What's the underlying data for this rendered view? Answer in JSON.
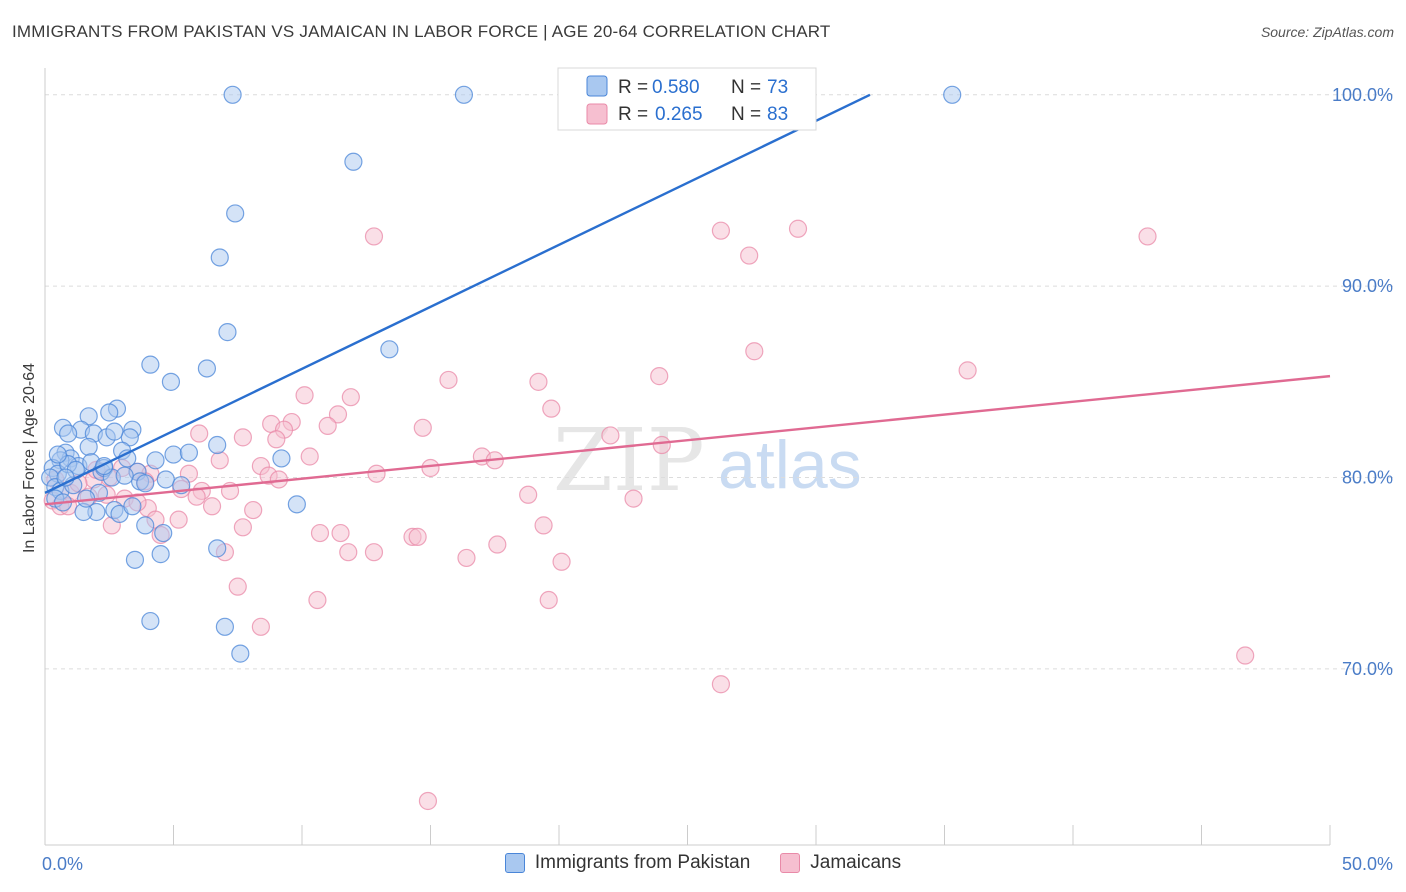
{
  "title": "IMMIGRANTS FROM PAKISTAN VS JAMAICAN IN LABOR FORCE | AGE 20-64 CORRELATION CHART",
  "source": "Source: ZipAtlas.com",
  "watermark": {
    "zip": "ZIP",
    "atlas": "atlas"
  },
  "colors": {
    "blue_fill": "#a9c8f0",
    "blue_stroke": "#4a86d8",
    "blue_line": "#2a6fcf",
    "pink_fill": "#f6bfd0",
    "pink_stroke": "#e98aa8",
    "pink_line": "#e06a92",
    "tick_text": "#4a7cc7",
    "grid": "#dcdcdc"
  },
  "legend_top": {
    "rows": [
      {
        "r_label": "R =",
        "r_value": "0.580",
        "n_label": "N =",
        "n_value": "73"
      },
      {
        "r_label": "R =",
        "r_value": "0.265",
        "n_label": "N =",
        "n_value": "83"
      }
    ]
  },
  "legend_bottom": [
    "Immigrants from Pakistan",
    "Jamaicans"
  ],
  "chart_data": {
    "type": "scatter",
    "title": "IMMIGRANTS FROM PAKISTAN VS JAMAICAN IN LABOR FORCE | AGE 20-64 CORRELATION CHART",
    "xlabel": "",
    "ylabel": "In Labor Force | Age 20-64",
    "xlim": [
      0,
      50
    ],
    "ylim": [
      60.8,
      101.4
    ],
    "x_tick_labels": [
      "0.0%",
      "50.0%"
    ],
    "y_ticks": [
      70,
      80,
      90,
      100
    ],
    "y_tick_labels": [
      "70.0%",
      "80.0%",
      "90.0%",
      "100.0%"
    ],
    "grid": true,
    "series": [
      {
        "name": "Immigrants from Pakistan",
        "R": 0.58,
        "N": 73,
        "trend": {
          "x": [
            0.0,
            32.1
          ],
          "y": [
            79.2,
            100.0
          ]
        },
        "points": [
          [
            7.3,
            100.0
          ],
          [
            16.3,
            100.0
          ],
          [
            35.3,
            100.0
          ],
          [
            12.0,
            96.5
          ],
          [
            7.4,
            93.8
          ],
          [
            6.8,
            91.5
          ],
          [
            7.1,
            87.6
          ],
          [
            13.4,
            86.7
          ],
          [
            4.1,
            85.9
          ],
          [
            6.3,
            85.7
          ],
          [
            4.9,
            85.0
          ],
          [
            2.8,
            83.6
          ],
          [
            0.7,
            82.6
          ],
          [
            2.5,
            83.4
          ],
          [
            1.7,
            83.2
          ],
          [
            1.4,
            82.5
          ],
          [
            1.9,
            82.3
          ],
          [
            3.4,
            82.5
          ],
          [
            3.3,
            82.1
          ],
          [
            2.4,
            82.1
          ],
          [
            1.7,
            81.6
          ],
          [
            0.8,
            81.3
          ],
          [
            1.0,
            81.0
          ],
          [
            0.6,
            80.9
          ],
          [
            1.3,
            80.6
          ],
          [
            1.8,
            80.8
          ],
          [
            3.0,
            81.4
          ],
          [
            3.2,
            81.0
          ],
          [
            5.0,
            81.2
          ],
          [
            5.6,
            81.3
          ],
          [
            6.7,
            81.7
          ],
          [
            9.2,
            81.0
          ],
          [
            0.3,
            80.5
          ],
          [
            0.5,
            80.2
          ],
          [
            0.9,
            80.7
          ],
          [
            2.2,
            80.3
          ],
          [
            2.3,
            80.5
          ],
          [
            3.6,
            80.3
          ],
          [
            2.6,
            80.0
          ],
          [
            0.2,
            80.0
          ],
          [
            0.4,
            79.5
          ],
          [
            0.6,
            79.3
          ],
          [
            1.1,
            79.6
          ],
          [
            3.7,
            79.8
          ],
          [
            3.9,
            79.7
          ],
          [
            4.7,
            79.9
          ],
          [
            5.3,
            79.6
          ],
          [
            0.4,
            78.9
          ],
          [
            0.7,
            78.7
          ],
          [
            2.0,
            78.2
          ],
          [
            2.7,
            78.3
          ],
          [
            2.9,
            78.1
          ],
          [
            9.8,
            78.6
          ],
          [
            3.9,
            77.5
          ],
          [
            4.6,
            77.1
          ],
          [
            4.5,
            76.0
          ],
          [
            6.7,
            76.3
          ],
          [
            3.5,
            75.7
          ],
          [
            4.1,
            72.5
          ],
          [
            7.0,
            72.2
          ],
          [
            7.6,
            70.8
          ],
          [
            1.5,
            78.2
          ],
          [
            2.1,
            79.2
          ],
          [
            1.2,
            80.4
          ],
          [
            0.9,
            82.3
          ],
          [
            2.7,
            82.4
          ],
          [
            3.1,
            80.1
          ],
          [
            0.5,
            81.2
          ],
          [
            1.6,
            78.9
          ],
          [
            4.3,
            80.9
          ],
          [
            2.3,
            80.6
          ],
          [
            3.4,
            78.5
          ],
          [
            0.8,
            80.0
          ]
        ]
      },
      {
        "name": "Jamaicans",
        "R": 0.265,
        "N": 83,
        "trend": {
          "x": [
            0.0,
            50.0
          ],
          "y": [
            78.6,
            85.3
          ]
        },
        "points": [
          [
            12.8,
            92.6
          ],
          [
            26.3,
            92.9
          ],
          [
            29.3,
            93.0
          ],
          [
            42.9,
            92.6
          ],
          [
            27.4,
            91.6
          ],
          [
            27.6,
            86.6
          ],
          [
            35.9,
            85.6
          ],
          [
            23.9,
            85.3
          ],
          [
            15.7,
            85.1
          ],
          [
            19.2,
            85.0
          ],
          [
            10.1,
            84.3
          ],
          [
            11.9,
            84.2
          ],
          [
            19.7,
            83.6
          ],
          [
            11.4,
            83.3
          ],
          [
            9.6,
            82.9
          ],
          [
            8.8,
            82.8
          ],
          [
            9.3,
            82.5
          ],
          [
            11.0,
            82.7
          ],
          [
            14.7,
            82.6
          ],
          [
            6.0,
            82.3
          ],
          [
            22.0,
            82.2
          ],
          [
            9.0,
            82.0
          ],
          [
            7.7,
            82.1
          ],
          [
            24.0,
            81.7
          ],
          [
            17.0,
            81.1
          ],
          [
            17.5,
            80.9
          ],
          [
            10.3,
            81.1
          ],
          [
            6.8,
            80.9
          ],
          [
            8.4,
            80.6
          ],
          [
            12.9,
            80.2
          ],
          [
            8.7,
            80.1
          ],
          [
            3.0,
            80.5
          ],
          [
            3.6,
            80.3
          ],
          [
            4.1,
            80.2
          ],
          [
            5.6,
            80.2
          ],
          [
            2.5,
            80.0
          ],
          [
            1.9,
            79.9
          ],
          [
            3.9,
            79.8
          ],
          [
            6.1,
            79.3
          ],
          [
            7.2,
            79.3
          ],
          [
            1.0,
            79.2
          ],
          [
            1.7,
            79.0
          ],
          [
            2.4,
            79.1
          ],
          [
            3.1,
            78.9
          ],
          [
            5.9,
            79.0
          ],
          [
            18.8,
            79.1
          ],
          [
            22.9,
            78.9
          ],
          [
            0.3,
            78.8
          ],
          [
            0.6,
            78.5
          ],
          [
            0.9,
            78.5
          ],
          [
            4.0,
            78.4
          ],
          [
            8.1,
            78.3
          ],
          [
            4.3,
            77.8
          ],
          [
            5.2,
            77.8
          ],
          [
            2.6,
            77.5
          ],
          [
            7.7,
            77.4
          ],
          [
            19.4,
            77.5
          ],
          [
            4.5,
            77.0
          ],
          [
            10.7,
            77.1
          ],
          [
            11.5,
            77.1
          ],
          [
            14.3,
            76.9
          ],
          [
            14.5,
            76.9
          ],
          [
            17.6,
            76.5
          ],
          [
            7.0,
            76.1
          ],
          [
            11.8,
            76.1
          ],
          [
            12.8,
            76.1
          ],
          [
            16.4,
            75.8
          ],
          [
            20.1,
            75.6
          ],
          [
            7.5,
            74.3
          ],
          [
            10.6,
            73.6
          ],
          [
            19.6,
            73.6
          ],
          [
            8.4,
            72.2
          ],
          [
            46.7,
            70.7
          ],
          [
            26.3,
            69.2
          ],
          [
            14.9,
            63.1
          ],
          [
            5.3,
            79.4
          ],
          [
            2.0,
            80.4
          ],
          [
            9.1,
            79.9
          ],
          [
            3.6,
            78.7
          ],
          [
            6.5,
            78.5
          ],
          [
            1.3,
            79.7
          ],
          [
            0.4,
            79.9
          ],
          [
            15.0,
            80.5
          ]
        ]
      }
    ]
  }
}
